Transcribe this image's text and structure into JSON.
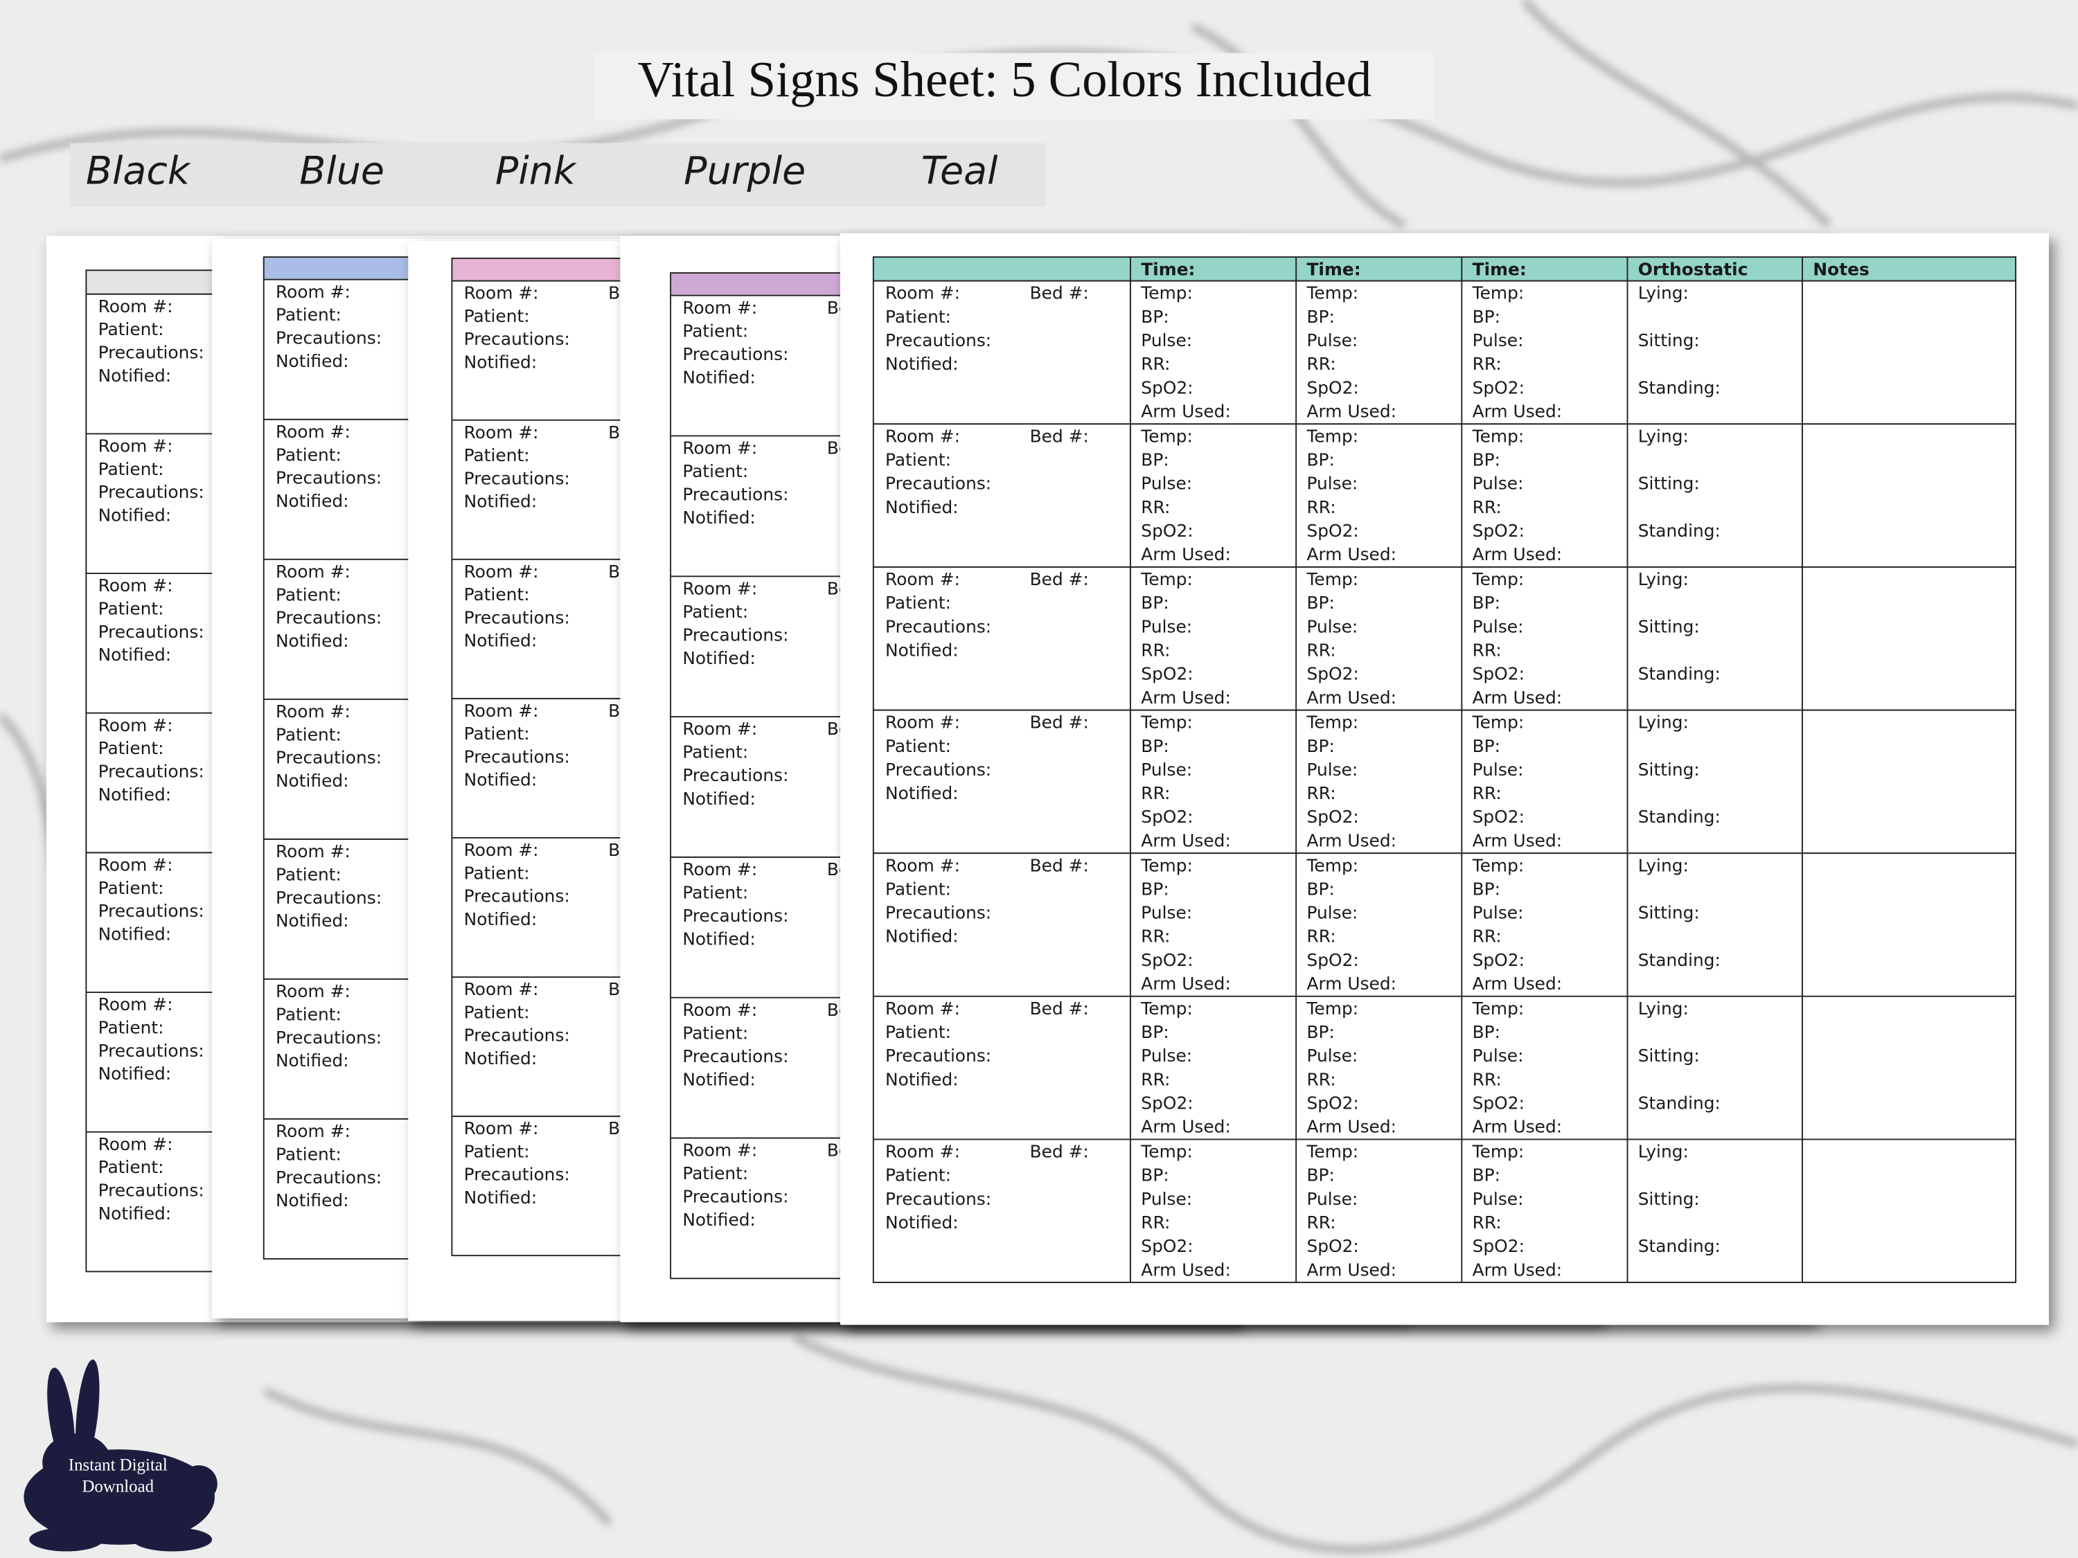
{
  "header": {
    "title": "Vital Signs Sheet:  5 Colors Included"
  },
  "color_options": [
    {
      "name": "Black",
      "color": "#111111",
      "header_color": "#e4e4e4"
    },
    {
      "name": "Blue",
      "color": "#3c7cc2",
      "header_color": "#a9bde6"
    },
    {
      "name": "Pink",
      "color": "#d67ab6",
      "header_color": "#e8b4d4"
    },
    {
      "name": "Purple",
      "color": "#9c7cba",
      "header_color": "#cfa9d6"
    },
    {
      "name": "Teal",
      "color": "#4a9a88",
      "header_color": "#94d5c8"
    }
  ],
  "sheet": {
    "column_headers": {
      "time": "Time:",
      "orthostatic": "Orthostatic",
      "notes": "Notes"
    },
    "patient_fields": [
      "Room #:",
      "Patient:",
      "Precautions:",
      "Notified:"
    ],
    "bed_field": "Bed #:",
    "vital_fields": [
      "Temp:",
      "BP:",
      "Pulse:",
      "RR:",
      "SpO2:",
      "Arm Used:"
    ],
    "orthostatic_fields": [
      "Lying:",
      "Sitting:",
      "Standing:"
    ]
  },
  "badge": {
    "text_lines": [
      "Instant Digital",
      "Download"
    ]
  }
}
